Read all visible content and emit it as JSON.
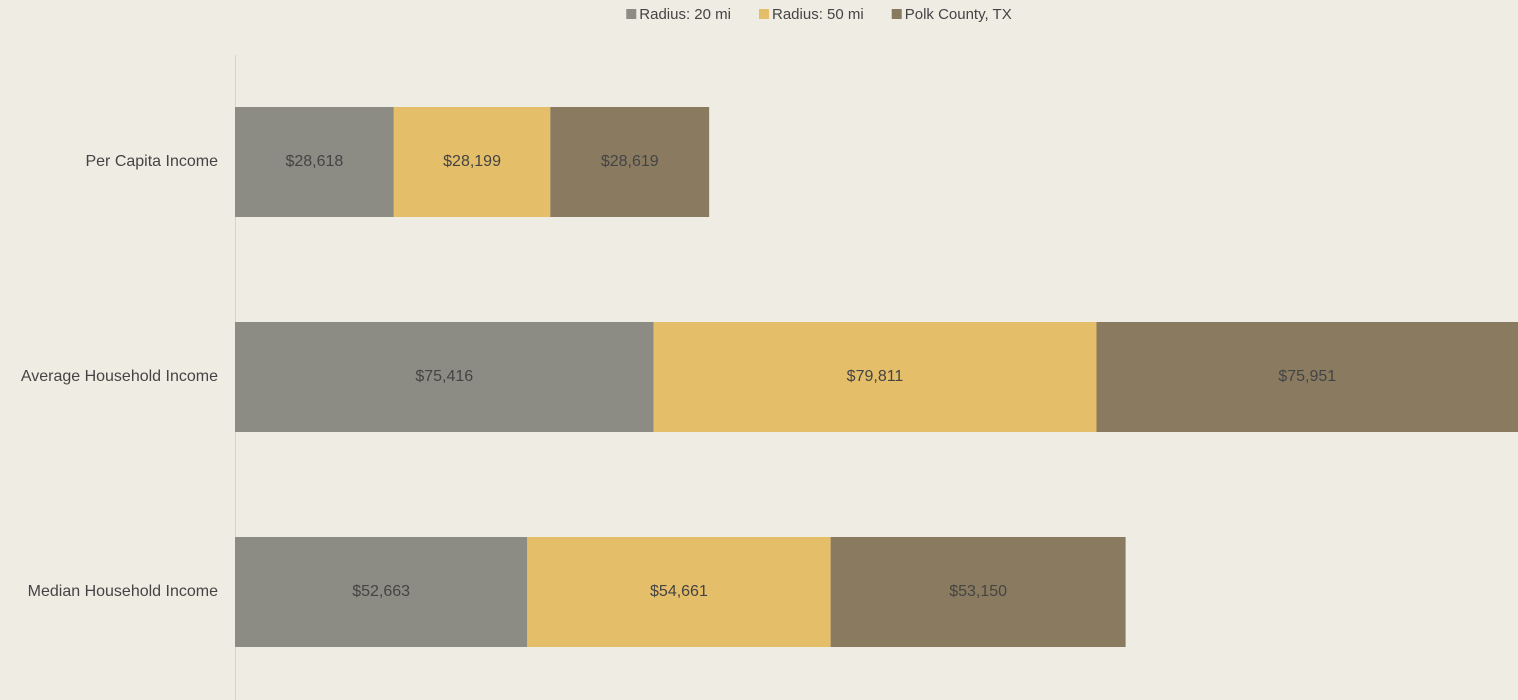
{
  "chart_data": {
    "type": "stacked-bar-horizontal",
    "categories": [
      "Per Capita Income",
      "Average Household Income",
      "Median Household Income"
    ],
    "series": [
      {
        "name": "Radius: 20 mi",
        "color": "#8c8c84",
        "values": [
          28618,
          75416,
          52663
        ],
        "value_labels": [
          "$28,618",
          "$75,416",
          "$52,663"
        ]
      },
      {
        "name": "Radius: 50 mi",
        "color": "#e5be69",
        "values": [
          28199,
          79811,
          54661
        ],
        "value_labels": [
          "$28,199",
          "$79,811",
          "$54,661"
        ]
      },
      {
        "name": "Polk County, TX",
        "color": "#8a7b60",
        "values": [
          28619,
          75951,
          53150
        ],
        "value_labels": [
          "$28,619",
          "$75,951",
          "$53,150"
        ]
      }
    ],
    "legend": "top"
  }
}
